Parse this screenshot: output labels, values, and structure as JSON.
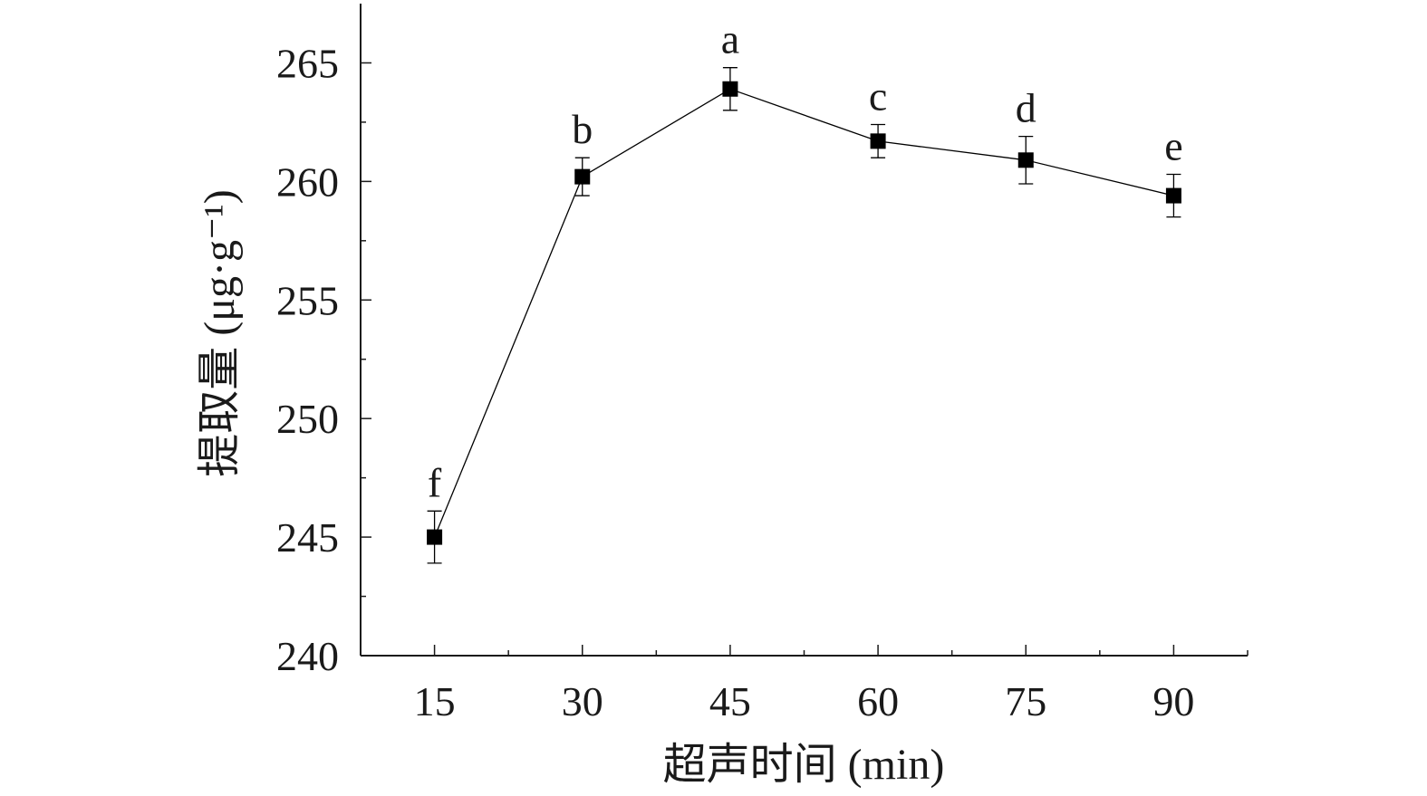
{
  "chart_data": {
    "type": "line",
    "xlabel": "超声时间 (min)",
    "ylabel": "提取量 (μg·g⁻¹)",
    "x": [
      15,
      30,
      45,
      60,
      75,
      90
    ],
    "x_ticks": [
      "15",
      "30",
      "45",
      "60",
      "75",
      "90"
    ],
    "xlim": [
      7.5,
      97.5
    ],
    "y_ticks": [
      "240",
      "245",
      "250",
      "255",
      "260",
      "265"
    ],
    "y_tick_values": [
      240,
      245,
      250,
      255,
      260,
      265
    ],
    "ylim": [
      240,
      267.5
    ],
    "series": [
      {
        "values": [
          245.0,
          260.2,
          263.9,
          261.7,
          260.9,
          259.4
        ],
        "errors": [
          1.1,
          0.8,
          0.9,
          0.7,
          1.0,
          0.9
        ],
        "labels": [
          "f",
          "b",
          "a",
          "c",
          "d",
          "e"
        ],
        "marker": "square",
        "color": "#000000"
      }
    ],
    "grid": false,
    "legend": "none"
  }
}
